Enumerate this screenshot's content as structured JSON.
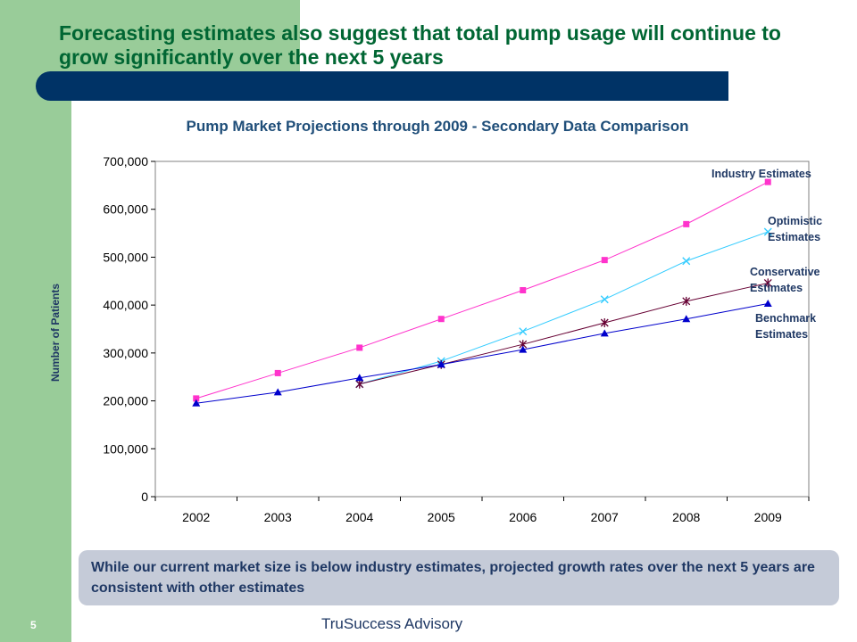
{
  "slide": {
    "title": "Forecasting estimates also suggest that total pump usage will continue to grow significantly over the next 5 years",
    "callout": "While our current market size is below industry estimates, projected growth rates over the next 5 years are consistent with other estimates",
    "page_number": "5",
    "footer": "TruSuccess Advisory"
  },
  "colors": {
    "industry": "#ff33cc",
    "optimistic": "#33ccff",
    "conservative": "#660033",
    "benchmark": "#0000cc",
    "title_bar": "#003366",
    "sidebar": "#99cc99"
  },
  "chart_data": {
    "type": "line",
    "title": "Pump Market Projections through 2009 - Secondary Data Comparison",
    "xlabel": "",
    "ylabel": "Number of Patients",
    "categories": [
      "2002",
      "2003",
      "2004",
      "2005",
      "2006",
      "2007",
      "2008",
      "2009"
    ],
    "ylim": [
      0,
      700000
    ],
    "yticks": [
      0,
      100000,
      200000,
      300000,
      400000,
      500000,
      600000,
      700000
    ],
    "ytick_labels": [
      "0",
      "100,000",
      "200,000",
      "300,000",
      "400,000",
      "500,000",
      "600,000",
      "700,000"
    ],
    "grid": false,
    "legend": "inline labels at line ends (right)",
    "series": [
      {
        "name": "Industry Estimates",
        "label_lines": [
          "Industry Estimates"
        ],
        "marker": "square",
        "color_key": "industry",
        "values": [
          205000,
          258000,
          311000,
          371000,
          431000,
          494000,
          569000,
          657000
        ]
      },
      {
        "name": "Optimistic Estimates",
        "label_lines": [
          "Optimistic",
          "Estimates"
        ],
        "marker": "x",
        "color_key": "optimistic",
        "values": [
          null,
          null,
          235000,
          283000,
          345000,
          412000,
          492000,
          553000
        ]
      },
      {
        "name": "Conservative Estimates",
        "label_lines": [
          "Conservative",
          "Estimates"
        ],
        "marker": "star",
        "color_key": "conservative",
        "values": [
          null,
          null,
          235000,
          276000,
          318000,
          363000,
          408000,
          446000
        ]
      },
      {
        "name": "Benchmark Estimates",
        "label_lines": [
          "Benchmark",
          "Estimates"
        ],
        "marker": "triangle",
        "color_key": "benchmark",
        "values": [
          195000,
          218000,
          248000,
          276000,
          307000,
          341000,
          371000,
          403000
        ]
      }
    ]
  }
}
